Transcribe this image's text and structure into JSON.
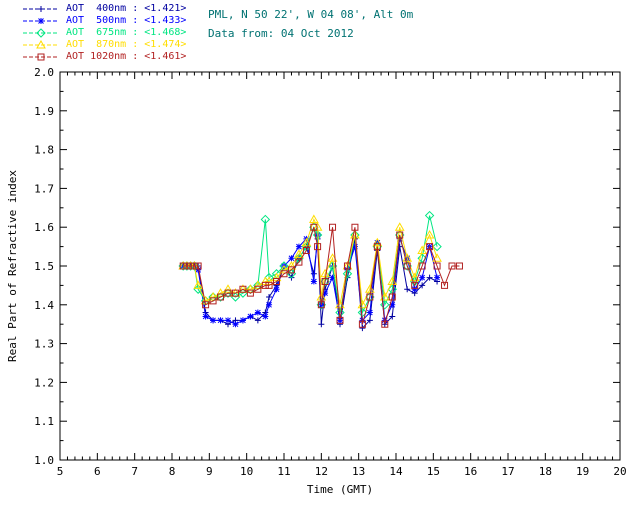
{
  "header": {
    "line1": "PML, N 50 22', W 04 08', Alt 0m",
    "line2": "Data from: 04 Oct 2012",
    "color": "#007272"
  },
  "legend": {
    "rows": [
      {
        "label": "AOT  400nm : <1.421>"
      },
      {
        "label": "AOT  500nm : <1.433>"
      },
      {
        "label": "AOT  675nm : <1.468>"
      },
      {
        "label": "AOT  870nm : <1.474>"
      },
      {
        "label": "AOT 1020nm : <1.461>"
      }
    ]
  },
  "chart_data": {
    "type": "line",
    "title": "",
    "xlabel": "Time (GMT)",
    "ylabel": "Real Part of Refractive index",
    "xlim": [
      5,
      20
    ],
    "ylim": [
      1.0,
      2.0
    ],
    "xticks": [
      5,
      6,
      7,
      8,
      9,
      10,
      11,
      12,
      13,
      14,
      15,
      16,
      17,
      18,
      19,
      20
    ],
    "yticks": [
      1.0,
      1.1,
      1.2,
      1.3,
      1.4,
      1.5,
      1.6,
      1.7,
      1.8,
      1.9,
      2.0
    ],
    "grid": false,
    "legend_position": "top-left",
    "series": [
      {
        "name": "AOT 400nm",
        "mean": "<1.421>",
        "color": "#0000a0",
        "symbol": "plus",
        "x": [
          8.3,
          8.4,
          8.5,
          8.6,
          8.7,
          8.9,
          9.1,
          9.3,
          9.5,
          9.7,
          9.9,
          10.1,
          10.3,
          10.5,
          10.6,
          10.8,
          11.0,
          11.2,
          11.4,
          11.6,
          11.8,
          11.9,
          12.0,
          12.1,
          12.3,
          12.5,
          12.7,
          12.9,
          13.1,
          13.3,
          13.5,
          13.7,
          13.9,
          14.1,
          14.3,
          14.5,
          14.7,
          14.9,
          15.1
        ],
        "y": [
          1.5,
          1.5,
          1.5,
          1.5,
          1.5,
          1.38,
          1.36,
          1.36,
          1.35,
          1.36,
          1.36,
          1.37,
          1.36,
          1.38,
          1.42,
          1.45,
          1.5,
          1.47,
          1.52,
          1.55,
          1.48,
          1.57,
          1.35,
          1.44,
          1.5,
          1.35,
          1.47,
          1.57,
          1.34,
          1.36,
          1.54,
          1.35,
          1.37,
          1.55,
          1.44,
          1.43,
          1.45,
          1.47,
          1.46
        ]
      },
      {
        "name": "AOT 500nm",
        "mean": "<1.433>",
        "color": "#0000ff",
        "symbol": "asterisk",
        "x": [
          8.3,
          8.4,
          8.5,
          8.6,
          8.7,
          8.9,
          9.1,
          9.3,
          9.5,
          9.7,
          9.9,
          10.1,
          10.3,
          10.5,
          10.6,
          10.8,
          11.0,
          11.2,
          11.4,
          11.6,
          11.8,
          11.9,
          12.0,
          12.1,
          12.3,
          12.5,
          12.7,
          12.9,
          13.1,
          13.3,
          13.5,
          13.7,
          13.9,
          14.1,
          14.3,
          14.5,
          14.7,
          14.9,
          15.1
        ],
        "y": [
          1.5,
          1.5,
          1.5,
          1.5,
          1.49,
          1.37,
          1.36,
          1.36,
          1.36,
          1.35,
          1.36,
          1.37,
          1.38,
          1.37,
          1.4,
          1.44,
          1.5,
          1.52,
          1.55,
          1.57,
          1.46,
          1.58,
          1.4,
          1.43,
          1.47,
          1.36,
          1.49,
          1.55,
          1.36,
          1.38,
          1.56,
          1.36,
          1.4,
          1.57,
          1.52,
          1.44,
          1.47,
          1.55,
          1.47
        ]
      },
      {
        "name": "AOT 675nm",
        "mean": "<1.468>",
        "color": "#00e682",
        "symbol": "diamond",
        "x": [
          8.3,
          8.4,
          8.5,
          8.6,
          8.7,
          8.9,
          9.1,
          9.3,
          9.5,
          9.7,
          9.9,
          10.1,
          10.3,
          10.5,
          10.6,
          10.8,
          11.0,
          11.2,
          11.4,
          11.6,
          11.8,
          11.9,
          12.0,
          12.1,
          12.3,
          12.5,
          12.7,
          12.9,
          13.1,
          13.3,
          13.5,
          13.7,
          13.9,
          14.1,
          14.3,
          14.5,
          14.7,
          14.9,
          15.1
        ],
        "y": [
          1.5,
          1.5,
          1.5,
          1.5,
          1.44,
          1.41,
          1.42,
          1.42,
          1.43,
          1.42,
          1.43,
          1.44,
          1.45,
          1.62,
          1.47,
          1.48,
          1.5,
          1.48,
          1.52,
          1.55,
          1.6,
          1.58,
          1.4,
          1.46,
          1.5,
          1.38,
          1.48,
          1.58,
          1.38,
          1.42,
          1.55,
          1.4,
          1.44,
          1.58,
          1.5,
          1.46,
          1.52,
          1.63,
          1.55
        ]
      },
      {
        "name": "AOT 870nm",
        "mean": "<1.474>",
        "color": "#ffdd00",
        "symbol": "triangle",
        "x": [
          8.3,
          8.4,
          8.5,
          8.6,
          8.7,
          8.9,
          9.1,
          9.3,
          9.5,
          9.7,
          9.9,
          10.1,
          10.3,
          10.5,
          10.6,
          10.8,
          11.0,
          11.2,
          11.4,
          11.6,
          11.8,
          11.9,
          12.0,
          12.1,
          12.3,
          12.5,
          12.7,
          12.9,
          13.1,
          13.3,
          13.5,
          13.7,
          13.9,
          14.1,
          14.3,
          14.5,
          14.7,
          14.9,
          15.1
        ],
        "y": [
          1.5,
          1.5,
          1.5,
          1.5,
          1.45,
          1.41,
          1.42,
          1.43,
          1.44,
          1.43,
          1.44,
          1.44,
          1.45,
          1.46,
          1.46,
          1.47,
          1.49,
          1.5,
          1.53,
          1.56,
          1.62,
          1.6,
          1.42,
          1.48,
          1.52,
          1.4,
          1.5,
          1.58,
          1.4,
          1.44,
          1.56,
          1.42,
          1.46,
          1.6,
          1.52,
          1.47,
          1.54,
          1.58,
          1.52
        ]
      },
      {
        "name": "AOT 1020nm",
        "mean": "<1.461>",
        "color": "#b22222",
        "symbol": "square",
        "x": [
          8.3,
          8.4,
          8.5,
          8.6,
          8.7,
          8.9,
          9.1,
          9.3,
          9.5,
          9.7,
          9.9,
          10.1,
          10.3,
          10.5,
          10.6,
          10.8,
          11.0,
          11.2,
          11.4,
          11.6,
          11.8,
          11.9,
          12.0,
          12.1,
          12.3,
          12.5,
          12.7,
          12.9,
          13.1,
          13.3,
          13.5,
          13.7,
          13.9,
          14.1,
          14.3,
          14.5,
          14.7,
          14.9,
          15.1,
          15.3,
          15.5,
          15.7
        ],
        "y": [
          1.5,
          1.5,
          1.5,
          1.5,
          1.5,
          1.4,
          1.41,
          1.42,
          1.43,
          1.43,
          1.44,
          1.43,
          1.44,
          1.45,
          1.45,
          1.46,
          1.48,
          1.49,
          1.51,
          1.54,
          1.6,
          1.55,
          1.4,
          1.46,
          1.6,
          1.36,
          1.5,
          1.6,
          1.35,
          1.42,
          1.55,
          1.35,
          1.42,
          1.58,
          1.5,
          1.45,
          1.5,
          1.55,
          1.5,
          1.45,
          1.5,
          1.5
        ]
      }
    ]
  }
}
